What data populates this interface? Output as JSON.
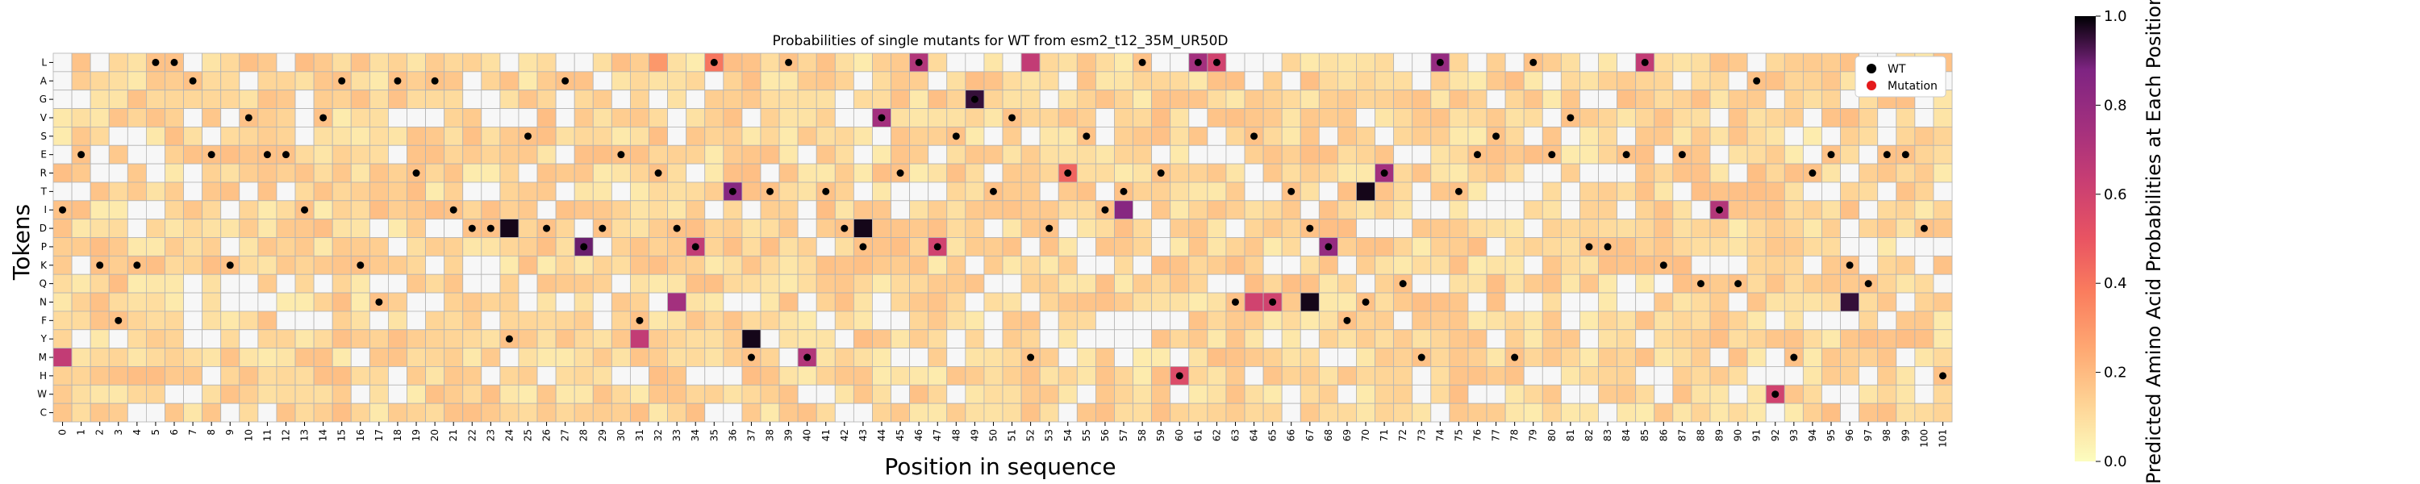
{
  "chart_data": {
    "type": "heatmap",
    "title": "Probabilities of single mutants for WT from esm2_t12_35M_UR50D",
    "xlabel": "Position in sequence",
    "ylabel": "Tokens",
    "colorbar_label": "Predicted Amino Acid Probabilities at Each Position",
    "colorbar_ticks": [
      "0.0",
      "0.2",
      "0.4",
      "0.6",
      "0.8",
      "1.0"
    ],
    "colorbar_range": [
      0,
      1
    ],
    "colormap": "magma_r",
    "legend": {
      "placement": "top-right",
      "entries": [
        {
          "label": "WT",
          "color": "#000000"
        },
        {
          "label": "Mutation",
          "color": "#e41a1c"
        }
      ]
    },
    "tokens": [
      "L",
      "A",
      "G",
      "V",
      "S",
      "E",
      "R",
      "T",
      "I",
      "D",
      "P",
      "K",
      "Q",
      "N",
      "F",
      "Y",
      "M",
      "H",
      "W",
      "C"
    ],
    "positions": [
      0,
      1,
      2,
      3,
      4,
      5,
      6,
      7,
      8,
      9,
      10,
      11,
      12,
      13,
      14,
      15,
      16,
      17,
      18,
      19,
      20,
      21,
      22,
      23,
      24,
      25,
      26,
      27,
      28,
      29,
      30,
      31,
      32,
      33,
      34,
      35,
      36,
      37,
      38,
      39,
      40,
      41,
      42,
      43,
      44,
      45,
      46,
      47,
      48,
      49,
      50,
      51,
      52,
      53,
      54,
      55,
      56,
      57,
      58,
      59,
      60,
      61,
      62,
      63,
      64,
      65,
      66,
      67,
      68,
      69,
      70,
      71,
      72,
      73,
      74,
      75,
      76,
      77,
      78,
      79,
      80,
      81,
      82,
      83,
      84,
      85,
      86,
      87,
      88,
      89,
      90,
      91,
      92,
      93,
      94,
      95,
      96,
      97,
      98,
      99,
      100,
      101
    ],
    "wild_type": [
      "I",
      "E",
      "K",
      "F",
      "K",
      "L",
      "L",
      "A",
      "E",
      "K",
      "V",
      "E",
      "E",
      "I",
      "V",
      "A",
      "K",
      "N",
      "A",
      "R",
      "A",
      "I",
      "D",
      "D",
      "Y",
      "S",
      "D",
      "A",
      "P",
      "D",
      "E",
      "F",
      "R",
      "D",
      "P",
      "L",
      "T",
      "M",
      "T",
      "L",
      "M",
      "T",
      "D",
      "P",
      "V",
      "R",
      "L",
      "P",
      "S",
      "G",
      "T",
      "V",
      "M",
      "D",
      "R",
      "S",
      "I",
      "T",
      "L",
      "R",
      "H",
      "L",
      "L",
      "N",
      "S",
      "N",
      "T",
      "D",
      "P",
      "F",
      "N",
      "R",
      "Q",
      "M",
      "L",
      "T",
      "E",
      "S",
      "M",
      "L",
      "E",
      "V",
      "P",
      "P",
      "E",
      "L",
      "K",
      "E",
      "Q",
      "I",
      "Q",
      "A",
      "W",
      "M",
      "R",
      "E",
      "K",
      "Q",
      "E",
      "E",
      "D",
      "H"
    ],
    "highlighted_probabilities": [
      {
        "position": 0,
        "token": "M",
        "value": 0.65
      },
      {
        "position": 24,
        "token": "D",
        "value": 0.98
      },
      {
        "position": 28,
        "token": "P",
        "value": 0.9
      },
      {
        "position": 31,
        "token": "Y",
        "value": 0.65
      },
      {
        "position": 32,
        "token": "L",
        "value": 0.3
      },
      {
        "position": 33,
        "token": "N",
        "value": 0.75
      },
      {
        "position": 34,
        "token": "P",
        "value": 0.65
      },
      {
        "position": 35,
        "token": "L",
        "value": 0.4
      },
      {
        "position": 36,
        "token": "T",
        "value": 0.85
      },
      {
        "position": 37,
        "token": "Y",
        "value": 0.98
      },
      {
        "position": 40,
        "token": "M",
        "value": 0.7
      },
      {
        "position": 43,
        "token": "D",
        "value": 0.98
      },
      {
        "position": 44,
        "token": "V",
        "value": 0.75
      },
      {
        "position": 46,
        "token": "L",
        "value": 0.7
      },
      {
        "position": 47,
        "token": "P",
        "value": 0.6
      },
      {
        "position": 49,
        "token": "G",
        "value": 0.95
      },
      {
        "position": 52,
        "token": "L",
        "value": 0.65
      },
      {
        "position": 54,
        "token": "R",
        "value": 0.45
      },
      {
        "position": 57,
        "token": "I",
        "value": 0.85
      },
      {
        "position": 60,
        "token": "H",
        "value": 0.55
      },
      {
        "position": 61,
        "token": "L",
        "value": 0.75
      },
      {
        "position": 62,
        "token": "L",
        "value": 0.6
      },
      {
        "position": 64,
        "token": "N",
        "value": 0.6
      },
      {
        "position": 65,
        "token": "N",
        "value": 0.6
      },
      {
        "position": 67,
        "token": "N",
        "value": 0.98
      },
      {
        "position": 68,
        "token": "P",
        "value": 0.8
      },
      {
        "position": 70,
        "token": "T",
        "value": 0.98
      },
      {
        "position": 71,
        "token": "R",
        "value": 0.75
      },
      {
        "position": 74,
        "token": "L",
        "value": 0.8
      },
      {
        "position": 85,
        "token": "L",
        "value": 0.65
      },
      {
        "position": 89,
        "token": "I",
        "value": 0.7
      },
      {
        "position": 92,
        "token": "W",
        "value": 0.6
      },
      {
        "position": 96,
        "token": "N",
        "value": 0.95
      }
    ]
  }
}
